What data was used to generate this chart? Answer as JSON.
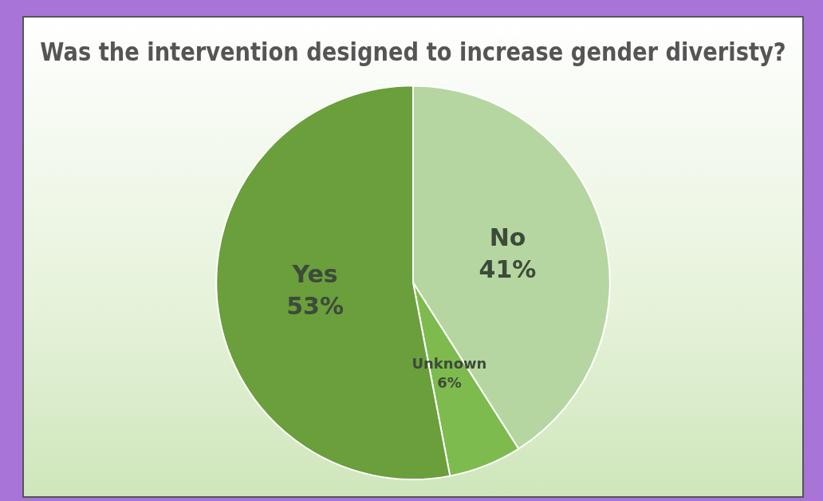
{
  "chart_data": {
    "type": "pie",
    "title": "Was the intervention designed to increase gender diveristy?",
    "categories": [
      "No",
      "Unknown",
      "Yes"
    ],
    "values": [
      41,
      6,
      53
    ],
    "value_labels": [
      "41%",
      "6%",
      "53%"
    ],
    "colors": [
      "#b5d6a0",
      "#7dbb4e",
      "#6a9f3c"
    ],
    "legend": false
  }
}
